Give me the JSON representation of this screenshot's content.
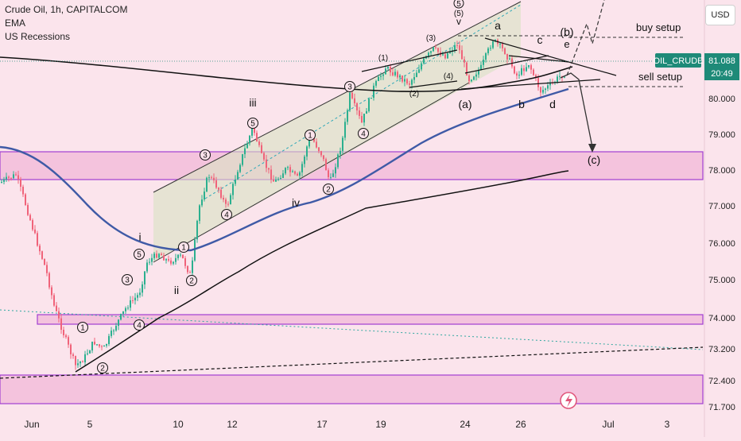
{
  "legend": {
    "title": "Crude Oil, 1h, CAPITALCOM",
    "indicator_1": "EMA",
    "indicator_2": "US Recessions"
  },
  "currency_button": "USD",
  "price_tag": {
    "symbol": "OIL_CRUDE",
    "price": "81.088",
    "timer": "20:49",
    "color": "#1e8a78"
  },
  "colors": {
    "background": "#fbe4ec",
    "candle_up": "#2bb08f",
    "candle_down": "#f0637a",
    "zone_fill": "#f4c3dd",
    "zone_border": "#a23ed3",
    "ema_blue": "#3f5aa6",
    "channel_fill": "#d9e3c3"
  },
  "annotations": {
    "wave_top_5": "5",
    "wave_top_5b": "(5)",
    "wave_top_v": "v",
    "wave_3_paren": "(3)",
    "wave_1_paren": "(1)",
    "wave_4_paren": "(4)",
    "wave_2_paren": "(2)",
    "wave_a_paren": "(a)",
    "wave_b": "b",
    "wave_a": "a",
    "wave_c": "c",
    "wave_d": "d",
    "wave_e": "e",
    "wave_b_paren": "(b)",
    "wave_c_paren": "(c)",
    "wave_iii": "iii",
    "wave_iv": "iv",
    "wave_i": "i",
    "wave_ii": "ii",
    "c1_1": "1",
    "c1_2": "2",
    "c1_3": "3",
    "c1_4": "4",
    "c1_5": "5",
    "c2_1": "1",
    "c2_2": "2",
    "c2_3": "3",
    "c2_4": "4",
    "c2_5": "5",
    "c3_1": "1",
    "c3_2": "2",
    "c3_3": "3",
    "c3_4": "4",
    "buy_setup": "buy setup",
    "sell_setup": "sell setup"
  },
  "chart_data": {
    "type": "line",
    "title": "Crude Oil, 1h, CAPITALCOM",
    "xlabel": "",
    "ylabel": "",
    "x_tick_labels": [
      "Jun",
      "5",
      "10",
      "12",
      "17",
      "19",
      "24",
      "26",
      "Jul",
      "3"
    ],
    "y_tick_labels": [
      "81.088",
      "80.000",
      "79.000",
      "78.000",
      "77.000",
      "76.000",
      "75.000",
      "74.000",
      "73.200",
      "72.400",
      "71.700"
    ],
    "ylim": [
      71.6,
      82.3
    ],
    "grid": false,
    "series": [
      {
        "name": "",
        "values": [
          78.0,
          77.5,
          75.6,
          73.2,
          72.6,
          72.8,
          73.5,
          74.2,
          75.5,
          76.0,
          75.3,
          77.8,
          77.3,
          79.0,
          77.7,
          78.9,
          78.0,
          79.8,
          80.7,
          81.2,
          81.1,
          81.5,
          81.8,
          81.2,
          81.0
        ]
      },
      {
        "name": "EMA",
        "values": [
          78.6,
          78.0,
          76.6,
          75.6,
          75.9,
          76.9,
          77.6,
          78.3,
          79.1,
          79.7,
          80.1,
          80.3
        ]
      },
      {
        "name": "",
        "values": [
          72.5,
          72.7,
          73.3,
          74.2,
          75.3,
          76.3,
          77.0,
          77.4,
          77.8,
          78.0
        ]
      }
    ],
    "zones": [
      {
        "from": 77.65,
        "to": 78.4
      },
      {
        "from": 73.9,
        "to": 74.15
      },
      {
        "from": 71.7,
        "to": 72.4
      }
    ],
    "levels": [
      {
        "label": "buy setup",
        "value": 81.75
      },
      {
        "label": "sell setup",
        "value": 80.2
      }
    ]
  }
}
